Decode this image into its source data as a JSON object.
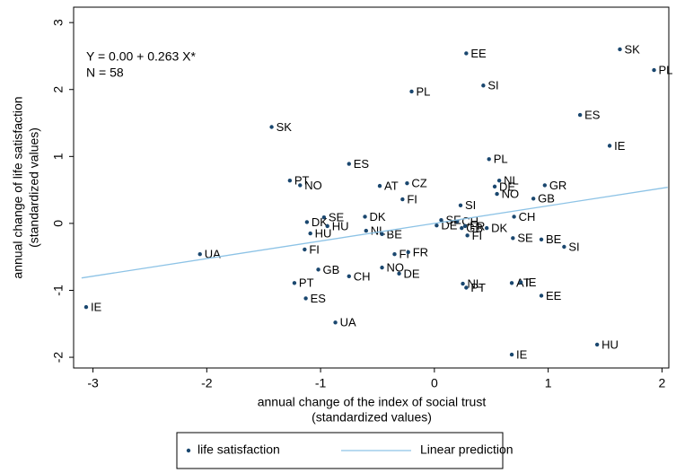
{
  "chart_data": {
    "type": "scatter",
    "annotations": [
      "Y = 0.00 + 0.263 X*",
      "N = 58"
    ],
    "xlabel": [
      "annual change of the index of social trust",
      "(standardized values)"
    ],
    "ylabel": [
      "annual change of life satisfaction",
      "(standardized values)"
    ],
    "xlim": [
      -3.17,
      2.06
    ],
    "ylim": [
      -2.16,
      3.23
    ],
    "xticks": [
      -3,
      -2,
      -1,
      0,
      1,
      2
    ],
    "yticks": [
      -2,
      -1,
      0,
      1,
      2,
      3
    ],
    "legend": "bottom",
    "series": [
      {
        "name": "life satisfaction",
        "type": "scatter",
        "color": "#1a476f",
        "labels": [
          "SK",
          "PL",
          "EE",
          "PL",
          "SI",
          "SK",
          "ES",
          "IE",
          "ES",
          "PL",
          "PT",
          "NO",
          "AT",
          "CZ",
          "NL",
          "DE",
          "NO",
          "GR",
          "FI",
          "GB",
          "SI",
          "DK",
          "CH",
          "SE",
          "DK",
          "HU",
          "SE",
          "CH",
          "DE",
          "FR",
          "GB",
          "DK",
          "HU",
          "NL",
          "BE",
          "FI",
          "SE",
          "BE",
          "SI",
          "UA",
          "FI",
          "FI",
          "FR",
          "GB",
          "CH",
          "NO",
          "DE",
          "PT",
          "ES",
          "NL",
          "PT",
          "AT",
          "IE",
          "EE",
          "IE",
          "UA",
          "IE",
          "HU"
        ],
        "x": [
          1.63,
          1.93,
          0.28,
          -0.2,
          0.43,
          -1.43,
          1.28,
          1.54,
          -0.75,
          0.48,
          -1.27,
          -1.18,
          -0.48,
          -0.24,
          0.57,
          0.53,
          0.55,
          0.97,
          -0.28,
          0.87,
          0.23,
          -0.61,
          0.7,
          -0.97,
          -1.12,
          -0.94,
          0.06,
          0.2,
          0.02,
          0.27,
          0.24,
          0.46,
          -1.09,
          -0.6,
          -0.46,
          0.29,
          0.69,
          0.94,
          1.14,
          -2.06,
          -1.14,
          -0.35,
          -0.23,
          -1.02,
          -0.75,
          -0.46,
          -0.31,
          -1.23,
          -1.13,
          0.25,
          0.28,
          0.68,
          0.76,
          0.94,
          -3.06,
          -0.87,
          0.68,
          1.43
        ],
        "values": [
          2.6,
          2.29,
          2.54,
          1.97,
          2.06,
          1.44,
          1.62,
          1.16,
          0.89,
          0.96,
          0.64,
          0.57,
          0.56,
          0.6,
          0.64,
          0.55,
          0.44,
          0.57,
          0.36,
          0.37,
          0.27,
          0.1,
          0.1,
          0.09,
          0.02,
          -0.04,
          0.05,
          0.03,
          -0.03,
          -0.04,
          -0.07,
          -0.07,
          -0.15,
          -0.11,
          -0.16,
          -0.18,
          -0.22,
          -0.24,
          -0.35,
          -0.46,
          -0.39,
          -0.46,
          -0.43,
          -0.69,
          -0.79,
          -0.66,
          -0.75,
          -0.89,
          -1.12,
          -0.9,
          -0.96,
          -0.89,
          -0.88,
          -1.08,
          -1.25,
          -1.48,
          -1.96,
          -1.81
        ]
      },
      {
        "name": "Linear prediction",
        "type": "line",
        "color": "#8dc3e6",
        "x": [
          -3.1,
          2.05
        ],
        "values": [
          -0.815,
          0.539
        ]
      }
    ]
  }
}
